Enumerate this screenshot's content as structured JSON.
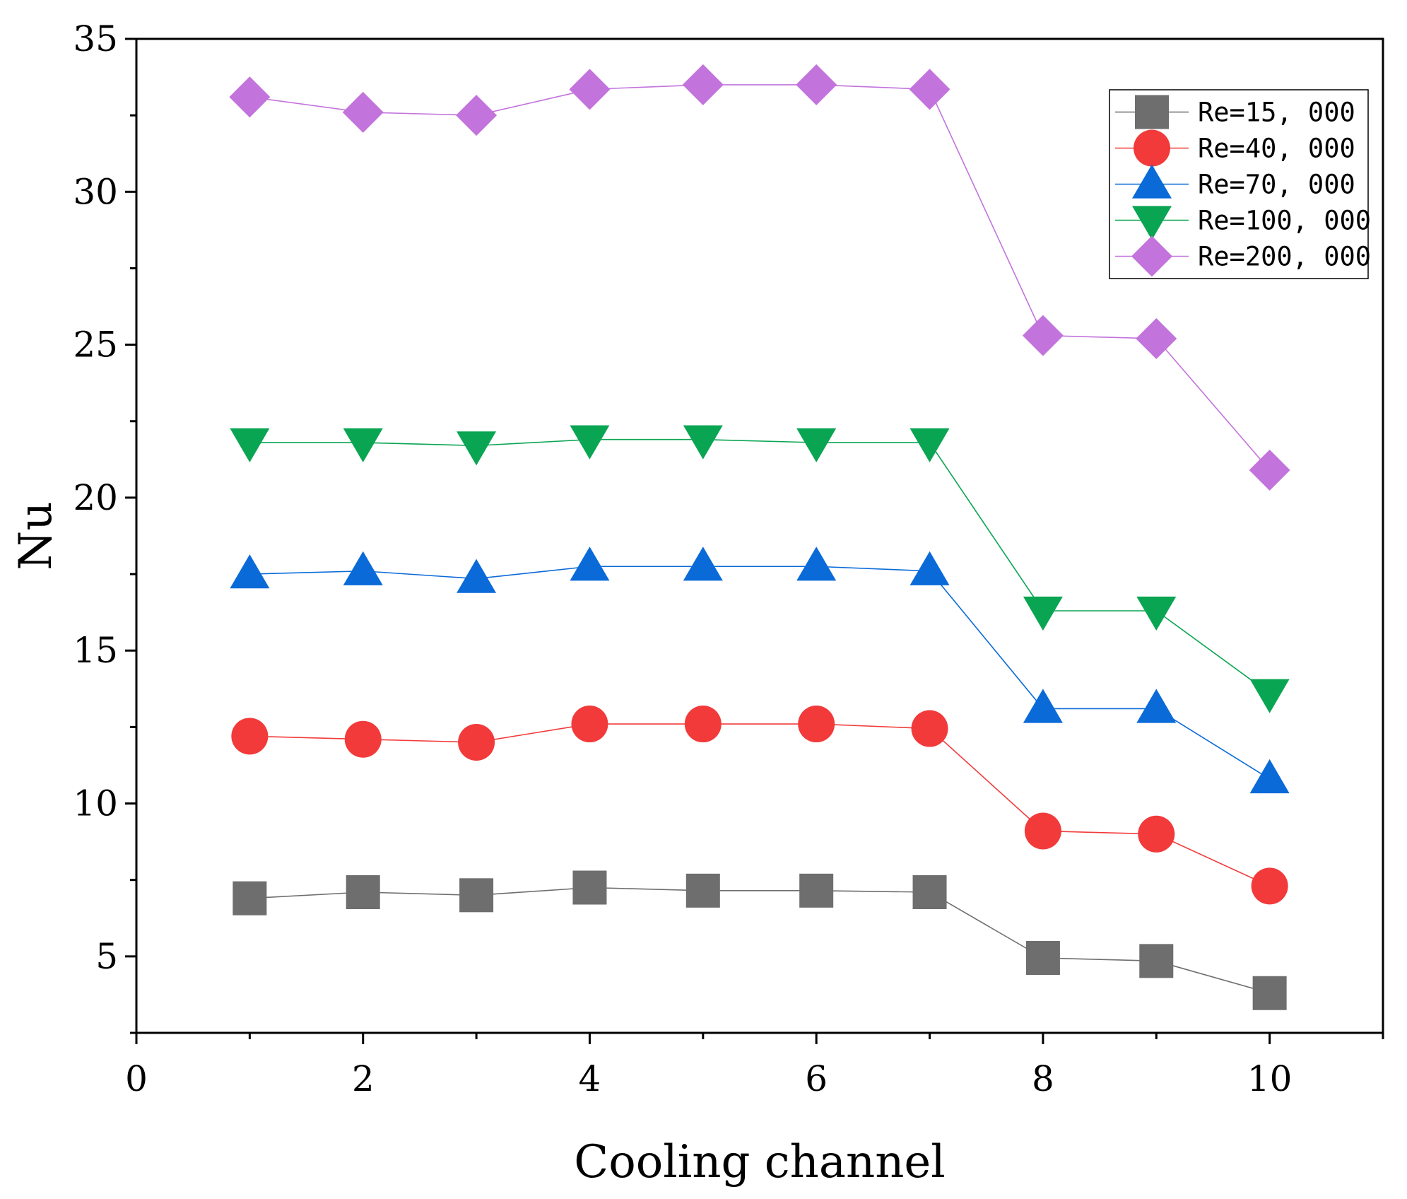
{
  "chart_data": {
    "type": "line",
    "title": "",
    "xlabel": "Cooling channel",
    "ylabel": "Nu",
    "xlim": [
      0,
      11
    ],
    "ylim": [
      2.5,
      35
    ],
    "x_ticks": [
      0,
      2,
      4,
      6,
      8,
      10
    ],
    "y_ticks": [
      5,
      10,
      15,
      20,
      25,
      30,
      35
    ],
    "x_tick_labels": [
      "0",
      "2",
      "4",
      "6",
      "8",
      "10"
    ],
    "y_tick_labels": [
      "5",
      "10",
      "15",
      "20",
      "25",
      "30",
      "35"
    ],
    "grid": false,
    "legend_position": "top-right",
    "x": [
      1,
      2,
      3,
      4,
      5,
      6,
      7,
      8,
      9,
      10
    ],
    "series": [
      {
        "name": "Re=15, 000",
        "marker": "square",
        "color": "#6e6e6e",
        "line_color": "#6e6e6e",
        "values": [
          6.9,
          7.1,
          7.0,
          7.25,
          7.15,
          7.15,
          7.1,
          4.95,
          4.85,
          3.8
        ]
      },
      {
        "name": "Re=40, 000",
        "marker": "circle",
        "color": "#f23a3a",
        "line_color": "#f23a3a",
        "values": [
          12.2,
          12.1,
          12.0,
          12.6,
          12.6,
          12.6,
          12.45,
          9.1,
          9.0,
          7.3
        ]
      },
      {
        "name": "Re=70, 000",
        "marker": "triangle-up",
        "color": "#0a6ad8",
        "line_color": "#0a6ad8",
        "values": [
          17.5,
          17.6,
          17.35,
          17.75,
          17.75,
          17.75,
          17.6,
          13.1,
          13.1,
          10.8
        ]
      },
      {
        "name": "Re=100, 000",
        "marker": "triangle-down",
        "color": "#0aa552",
        "line_color": "#0aa552",
        "values": [
          21.8,
          21.8,
          21.7,
          21.9,
          21.9,
          21.8,
          21.8,
          16.3,
          16.3,
          13.6
        ]
      },
      {
        "name": "Re=200, 000",
        "marker": "diamond",
        "color": "#c373dc",
        "line_color": "#c373dc",
        "values": [
          33.1,
          32.6,
          32.5,
          33.35,
          33.5,
          33.5,
          33.35,
          25.3,
          25.2,
          20.9
        ]
      }
    ]
  }
}
